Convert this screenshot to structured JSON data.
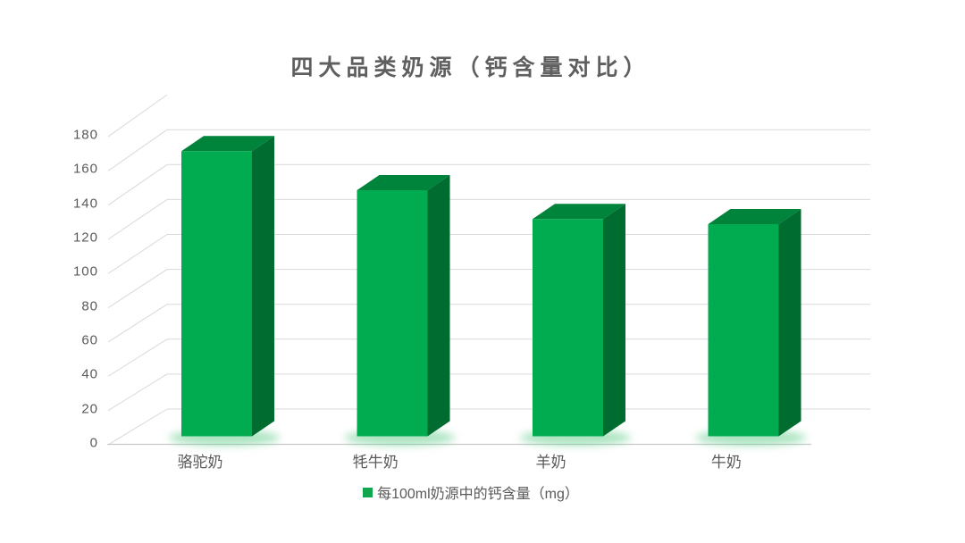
{
  "chart_data": {
    "type": "bar",
    "style": "3d-column",
    "title": "四大品类奶源（钙含量对比）",
    "categories": [
      "骆驼奶",
      "牦牛奶",
      "羊奶",
      "牛奶"
    ],
    "series": [
      {
        "name": "每100ml奶源中的钙含量（mg）",
        "values": [
          168,
          145,
          128,
          125
        ]
      }
    ],
    "ylim": [
      0,
      180
    ],
    "ytick_interval": 20,
    "yticks": [
      0,
      20,
      40,
      60,
      80,
      100,
      120,
      140,
      160,
      180
    ],
    "grid": true,
    "legend_position": "bottom",
    "colors": {
      "bar_front": "#00AC4F",
      "bar_top": "#00833B",
      "bar_side": "#006C30",
      "bar_glow": "#5BCB86",
      "gridline": "#D9D9D9",
      "axis_line": "#C9C9C9",
      "tick_text": "#595959",
      "title_text": "#5F5F5F",
      "legend_marker": "#0FA64D"
    }
  },
  "legend": {
    "label": "每100ml奶源中的钙含量（mg）"
  }
}
